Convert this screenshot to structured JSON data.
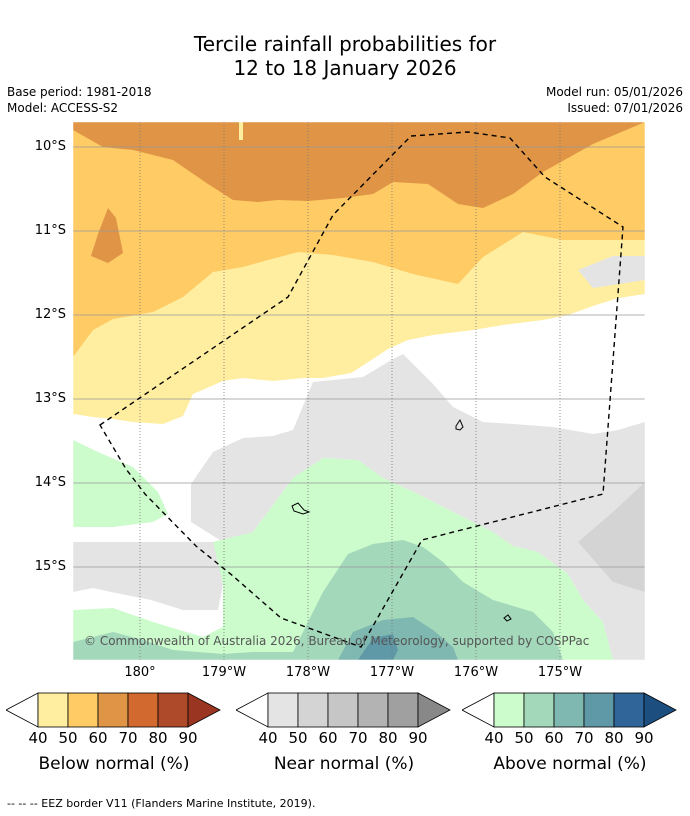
{
  "title": {
    "line1": "Tercile rainfall probabilities for",
    "line2": "12 to 18 January 2026"
  },
  "meta": {
    "base_period": "Base period: 1981-2018",
    "model": "Model: ACCESS-S2",
    "model_run": "Model run: 05/01/2026",
    "issued": "Issued: 07/01/2026"
  },
  "map": {
    "lat_labels": [
      "10°S",
      "11°S",
      "12°S",
      "13°S",
      "14°S",
      "15°S"
    ],
    "lon_labels": [
      "180°",
      "179°W",
      "178°W",
      "177°W",
      "176°W",
      "175°W"
    ],
    "credit": "© Commonwealth of Australia 2026, Bureau of Meteorology, supported by COSPPac",
    "colors": {
      "below_40": "#ffeda0",
      "below_50": "#fecb64",
      "below_60": "#e09446",
      "near_40": "#e4e4e4",
      "near_50": "#d4d4d4",
      "above_40": "#ccfbcc",
      "above_50": "#a3d8bb",
      "above_60": "#7fb8b0",
      "above_70": "#5f98a6"
    }
  },
  "colorbars": [
    {
      "name": "below",
      "label": "Below normal (%)",
      "ticks": [
        "40",
        "50",
        "60",
        "70",
        "80",
        "90"
      ],
      "colors": [
        "#ffeda0",
        "#fecb64",
        "#e09446",
        "#d2692e",
        "#ae4a29",
        "#993520"
      ]
    },
    {
      "name": "near",
      "label": "Near normal (%)",
      "ticks": [
        "40",
        "50",
        "60",
        "70",
        "80",
        "90"
      ],
      "colors": [
        "#e4e4e4",
        "#d4d4d4",
        "#c6c6c6",
        "#b3b3b3",
        "#a0a0a0",
        "#888888"
      ]
    },
    {
      "name": "above",
      "label": "Above normal (%)",
      "ticks": [
        "40",
        "50",
        "60",
        "70",
        "80",
        "90"
      ],
      "colors": [
        "#ccfbcc",
        "#a3d8bb",
        "#7fb8b0",
        "#5f98a6",
        "#30659a",
        "#1c4e80"
      ]
    }
  ],
  "footer": {
    "eez_note": "--  --  -- EEZ border V11 (Flanders Marine Institute, 2019)."
  }
}
